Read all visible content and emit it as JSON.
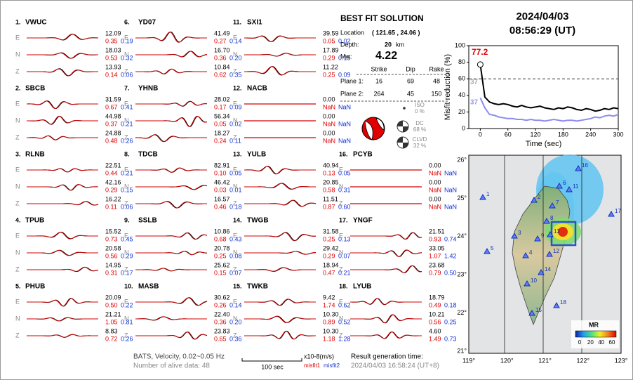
{
  "stations": [
    {
      "number": "1.",
      "name": "VWUC",
      "components": [
        {
          "label": "E",
          "amp": "12.09",
          "misfit1": "0.35",
          "misfit2": "0.19"
        },
        {
          "label": "N",
          "amp": "18.03",
          "misfit1": "0.53",
          "misfit2": "0.32"
        },
        {
          "label": "Z",
          "amp": "13.93",
          "misfit1": "0.14",
          "misfit2": "0.06"
        }
      ]
    },
    {
      "number": "2.",
      "name": "SBCB",
      "components": [
        {
          "label": "E",
          "amp": "31.59",
          "misfit1": "0.67",
          "misfit2": "0.41"
        },
        {
          "label": "N",
          "amp": "44.98",
          "misfit1": "0.37",
          "misfit2": "0.21"
        },
        {
          "label": "Z",
          "amp": "24.88",
          "misfit1": "0.48",
          "misfit2": "0.26"
        }
      ]
    },
    {
      "number": "3.",
      "name": "RLNB",
      "components": [
        {
          "label": "E",
          "amp": "22.51",
          "misfit1": "0.44",
          "misfit2": "0.21"
        },
        {
          "label": "N",
          "amp": "42.16",
          "misfit1": "0.29",
          "misfit2": "0.15"
        },
        {
          "label": "Z",
          "amp": "16.22",
          "misfit1": "0.11",
          "misfit2": "0.06"
        }
      ]
    },
    {
      "number": "4.",
      "name": "TPUB",
      "components": [
        {
          "label": "E",
          "amp": "15.52",
          "misfit1": "0.73",
          "misfit2": "0.45"
        },
        {
          "label": "N",
          "amp": "20.58",
          "misfit1": "0.56",
          "misfit2": "0.29"
        },
        {
          "label": "Z",
          "amp": "14.95",
          "misfit1": "0.31",
          "misfit2": "0.17"
        }
      ]
    },
    {
      "number": "5.",
      "name": "PHUB",
      "components": [
        {
          "label": "E",
          "amp": "20.09",
          "misfit1": "0.50",
          "misfit2": "0.22"
        },
        {
          "label": "N",
          "amp": "21.21",
          "misfit1": "1.05",
          "misfit2": "0.81"
        },
        {
          "label": "Z",
          "amp": "8.83",
          "misfit1": "0.72",
          "misfit2": "0.26"
        }
      ]
    },
    {
      "number": "6.",
      "name": "YD07",
      "components": [
        {
          "label": "E",
          "amp": "41.49",
          "misfit1": "0.27",
          "misfit2": "0.14"
        },
        {
          "label": "N",
          "amp": "16.70",
          "misfit1": "0.36",
          "misfit2": "0.20"
        },
        {
          "label": "Z",
          "amp": "10.84",
          "misfit1": "0.62",
          "misfit2": "0.35"
        }
      ]
    },
    {
      "number": "7.",
      "name": "YHNB",
      "components": [
        {
          "label": "E",
          "amp": "28.02",
          "misfit1": "0.17",
          "misfit2": "0.09"
        },
        {
          "label": "N",
          "amp": "56.34",
          "misfit1": "0.05",
          "misfit2": "0.02"
        },
        {
          "label": "Z",
          "amp": "18.27",
          "misfit1": "0.24",
          "misfit2": "0.11"
        }
      ]
    },
    {
      "number": "8.",
      "name": "TDCB",
      "components": [
        {
          "label": "E",
          "amp": "82.91",
          "misfit1": "0.10",
          "misfit2": "0.05"
        },
        {
          "label": "N",
          "amp": "46.42",
          "misfit1": "0.03",
          "misfit2": "0.01"
        },
        {
          "label": "Z",
          "amp": "16.57",
          "misfit1": "0.46",
          "misfit2": "0.18"
        }
      ]
    },
    {
      "number": "9.",
      "name": "SSLB",
      "components": [
        {
          "label": "E",
          "amp": "10.86",
          "misfit1": "0.68",
          "misfit2": "0.43"
        },
        {
          "label": "N",
          "amp": "20.78",
          "misfit1": "0.25",
          "misfit2": "0.08"
        },
        {
          "label": "Z",
          "amp": "25.62",
          "misfit1": "0.15",
          "misfit2": "0.07"
        }
      ]
    },
    {
      "number": "10.",
      "name": "MASB",
      "components": [
        {
          "label": "E",
          "amp": "30.62",
          "misfit1": "0.26",
          "misfit2": "0.14"
        },
        {
          "label": "N",
          "amp": "22.40",
          "misfit1": "0.36",
          "misfit2": "0.20"
        },
        {
          "label": "Z",
          "amp": "23.83",
          "misfit1": "0.65",
          "misfit2": "0.36"
        }
      ]
    },
    {
      "number": "11.",
      "name": "SXI1",
      "components": [
        {
          "label": "E",
          "amp": "39.59",
          "misfit1": "0.05",
          "misfit2": "0.02"
        },
        {
          "label": "N",
          "amp": "17.89",
          "misfit1": "0.29",
          "misfit2": "0.15"
        },
        {
          "label": "Z",
          "amp": "11.22",
          "misfit1": "0.25",
          "misfit2": "0.09"
        }
      ]
    },
    {
      "number": "12.",
      "name": "NACB",
      "components": [
        {
          "label": "E",
          "amp": "0.00",
          "misfit1": "NaN",
          "misfit2": "NaN"
        },
        {
          "label": "N",
          "amp": "0.00",
          "misfit1": "NaN",
          "misfit2": "NaN"
        },
        {
          "label": "Z",
          "amp": "0.00",
          "misfit1": "NaN",
          "misfit2": "NaN"
        }
      ]
    },
    {
      "number": "13.",
      "name": "YULB",
      "components": [
        {
          "label": "E",
          "amp": "40.94",
          "misfit1": "0.13",
          "misfit2": "0.05"
        },
        {
          "label": "N",
          "amp": "20.85",
          "misfit1": "0.58",
          "misfit2": "0.31"
        },
        {
          "label": "Z",
          "amp": "11.51",
          "misfit1": "0.87",
          "misfit2": "0.60"
        }
      ]
    },
    {
      "number": "14.",
      "name": "TWGB",
      "components": [
        {
          "label": "E",
          "amp": "31.58",
          "misfit1": "0.25",
          "misfit2": "0.13"
        },
        {
          "label": "N",
          "amp": "29.42",
          "misfit1": "0.29",
          "misfit2": "0.07"
        },
        {
          "label": "Z",
          "amp": "18.94",
          "misfit1": "0.47",
          "misfit2": "0.21"
        }
      ]
    },
    {
      "number": "15.",
      "name": "TWKB",
      "components": [
        {
          "label": "E",
          "amp": "9.42",
          "misfit1": "1.74",
          "misfit2": "0.62"
        },
        {
          "label": "N",
          "amp": "10.30",
          "misfit1": "0.89",
          "misfit2": "0.52"
        },
        {
          "label": "Z",
          "amp": "10.30",
          "misfit1": "1.18",
          "misfit2": "1.28"
        }
      ]
    },
    {
      "number": "16.",
      "name": "PCYB",
      "components": [
        {
          "label": "E",
          "amp": "0.00",
          "misfit1": "NaN",
          "misfit2": "NaN"
        },
        {
          "label": "N",
          "amp": "0.00",
          "misfit1": "NaN",
          "misfit2": "NaN"
        },
        {
          "label": "Z",
          "amp": "0.00",
          "misfit1": "NaN",
          "misfit2": "NaN"
        }
      ]
    },
    {
      "number": "17.",
      "name": "YNGF",
      "components": [
        {
          "label": "E",
          "amp": "21.51",
          "misfit1": "0.93",
          "misfit2": "0.74"
        },
        {
          "label": "N",
          "amp": "33.05",
          "misfit1": "1.07",
          "misfit2": "1.42"
        },
        {
          "label": "Z",
          "amp": "23.68",
          "misfit1": "0.79",
          "misfit2": "0.50"
        }
      ]
    },
    {
      "number": "18.",
      "name": "LYUB",
      "components": [
        {
          "label": "E",
          "amp": "18.79",
          "misfit1": "0.49",
          "misfit2": "0.18"
        },
        {
          "label": "N",
          "amp": "10.21",
          "misfit1": "0.56",
          "misfit2": "0.25"
        },
        {
          "label": "Z",
          "amp": "4.60",
          "misfit1": "1.49",
          "misfit2": "0.73"
        }
      ]
    }
  ],
  "solution": {
    "title": "BEST FIT SOLUTION",
    "location_label": "Location",
    "location": "( 121.65 , 24.06 )",
    "depth_label": "Depth:",
    "depth": "20",
    "depth_unit": "km",
    "mw_label": "Mw:",
    "mw": "4.22",
    "columns": [
      "Strike",
      "Dip",
      "Rake"
    ],
    "planes": [
      {
        "label": "Plane 1:",
        "values": [
          "16",
          "69",
          "48"
        ]
      },
      {
        "label": "Plane 2:",
        "values": [
          "264",
          "45",
          "150"
        ]
      }
    ],
    "components": [
      {
        "label": "ISO",
        "percent": "0 %"
      },
      {
        "label": "DC",
        "percent": "68 %"
      },
      {
        "label": "CLVD",
        "percent": "32 %"
      }
    ]
  },
  "header": {
    "date": "2024/04/03",
    "time": "08:56:29  (UT)"
  },
  "chart_data": {
    "type": "line",
    "ylabel": "Misfit reduction (%)",
    "xlabel": "Time (sec)",
    "x": [
      0,
      10,
      20,
      30,
      40,
      50,
      60,
      70,
      80,
      90,
      100,
      110,
      120,
      130,
      140,
      150,
      160,
      170,
      180,
      190,
      200,
      210,
      220,
      230,
      240,
      250,
      260,
      270,
      280,
      290,
      300
    ],
    "series": [
      {
        "name": "misfit1",
        "color": "#000000",
        "values": [
          77.2,
          38,
          32,
          30,
          29,
          30,
          29,
          27,
          26,
          28,
          26,
          25,
          26,
          27,
          25,
          24,
          23,
          25,
          24,
          26,
          25,
          23,
          22,
          24,
          23,
          21,
          22,
          24,
          23,
          25,
          24
        ]
      },
      {
        "name": "misfit2",
        "color": "#8c8cf0",
        "values": [
          37,
          25,
          17,
          16,
          14,
          13,
          12,
          12,
          11,
          11,
          10,
          11,
          10,
          10,
          9,
          10,
          11,
          10,
          9,
          10,
          10,
          9,
          10,
          11,
          12,
          14,
          13,
          15,
          16,
          15,
          17
        ]
      }
    ],
    "xlim": [
      -25,
      300
    ],
    "ylim": [
      0,
      100
    ],
    "xticks": [
      0,
      60,
      120,
      180,
      240,
      300
    ],
    "yticks": [
      0,
      20,
      40,
      60,
      80,
      100
    ],
    "threshold": 60,
    "annotations": [
      "77.2",
      "37",
      "37"
    ]
  },
  "map": {
    "station_labels": [
      "1",
      "2",
      "3",
      "4",
      "5",
      "6",
      "7",
      "8",
      "9",
      "10",
      "11",
      "12",
      "13",
      "14",
      "15",
      "16",
      "17",
      "18"
    ],
    "lat_labels": [
      "26°",
      "25°",
      "24°",
      "23°",
      "22°",
      "21°"
    ],
    "lon_labels": [
      "119°",
      "120°",
      "121°",
      "122°",
      "123°"
    ],
    "colorbar_title": "MR",
    "colorbar_ticks": [
      0,
      20,
      40,
      60
    ]
  },
  "footer": {
    "source": "BATS, Velocity, 0.02~0.05 Hz",
    "alive": "Number of alive data: 48",
    "scale": "100 sec",
    "unit": "x10-8(m/s)",
    "misfit1": "misfit1",
    "misfit2": "misfit2",
    "result_label": "Result generation time:",
    "result_time": "2024/04/03 16:58:24 (UT+8)"
  }
}
